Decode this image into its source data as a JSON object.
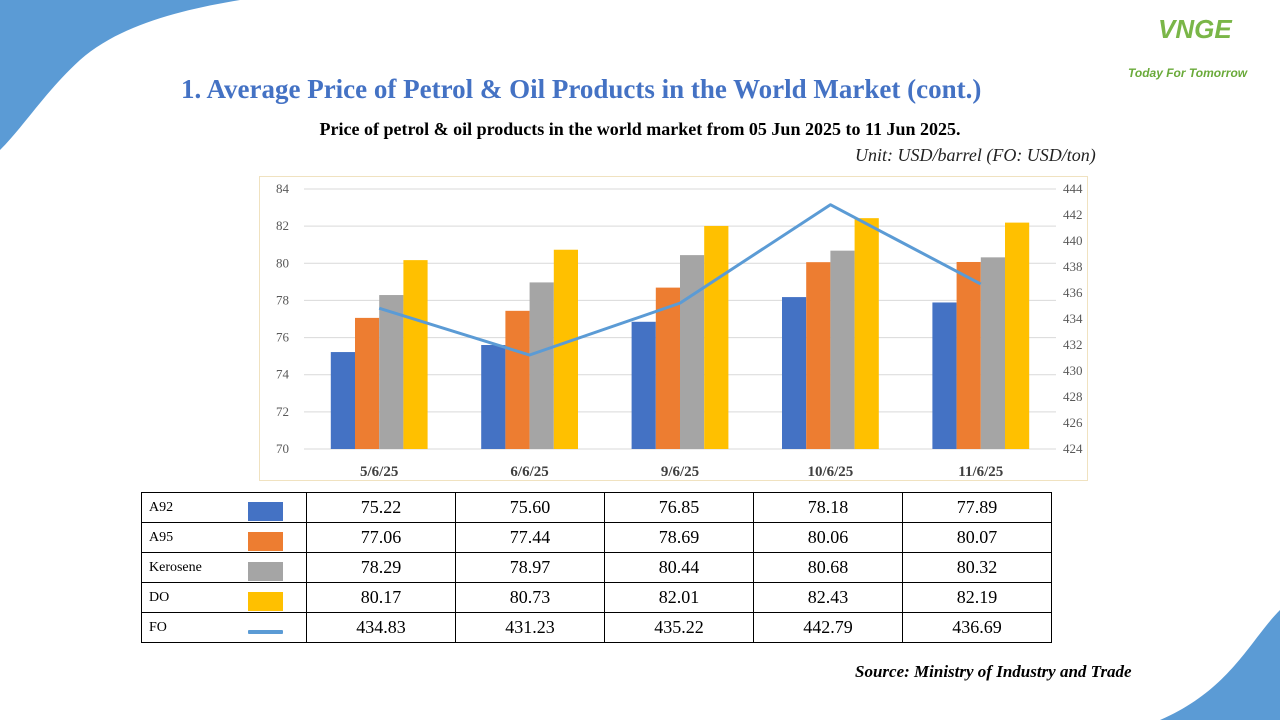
{
  "header": {
    "title": "1. Average Price of Petrol & Oil Products in the World Market (cont.)",
    "logo_text": "VNGE",
    "tagline": "Today For Tomorrow"
  },
  "chart": {
    "title": "Price of petrol & oil products in the world market from 05 Jun 2025 to 11 Jun 2025.",
    "unit": "Unit: USD/barrel (FO: USD/ton)"
  },
  "source": "Source: Ministry of Industry and Trade",
  "colors": {
    "A92": "#4472c4",
    "A95": "#ed7d31",
    "Kerosene": "#a5a5a5",
    "DO": "#ffc000",
    "FO": "#5b9bd5",
    "title": "#4472c4",
    "decor": "#5b9bd5"
  },
  "chart_data": {
    "type": "bar",
    "categories": [
      "5/6/25",
      "6/6/25",
      "9/6/25",
      "10/6/25",
      "11/6/25"
    ],
    "series": [
      {
        "name": "A92",
        "type": "bar",
        "axis": "left",
        "values": [
          75.22,
          75.6,
          76.85,
          78.18,
          77.89
        ],
        "labels": [
          "75.22",
          "75.60",
          "76.85",
          "78.18",
          "77.89"
        ]
      },
      {
        "name": "A95",
        "type": "bar",
        "axis": "left",
        "values": [
          77.06,
          77.44,
          78.69,
          80.06,
          80.07
        ],
        "labels": [
          "77.06",
          "77.44",
          "78.69",
          "80.06",
          "80.07"
        ]
      },
      {
        "name": "Kerosene",
        "type": "bar",
        "axis": "left",
        "values": [
          78.29,
          78.97,
          80.44,
          80.68,
          80.32
        ],
        "labels": [
          "78.29",
          "78.97",
          "80.44",
          "80.68",
          "80.32"
        ]
      },
      {
        "name": "DO",
        "type": "bar",
        "axis": "left",
        "values": [
          80.17,
          80.73,
          82.01,
          82.43,
          82.19
        ],
        "labels": [
          "80.17",
          "80.73",
          "82.01",
          "82.43",
          "82.19"
        ]
      },
      {
        "name": "FO",
        "type": "line",
        "axis": "right",
        "values": [
          434.83,
          431.23,
          435.22,
          442.79,
          436.69
        ],
        "labels": [
          "434.83",
          "431.23",
          "435.22",
          "442.79",
          "436.69"
        ]
      }
    ],
    "ylim": [
      70,
      84
    ],
    "y_ticks": [
      "70",
      "72",
      "74",
      "76",
      "78",
      "80",
      "82",
      "84"
    ],
    "y2lim": [
      424,
      444
    ],
    "y2_ticks": [
      "424",
      "426",
      "428",
      "430",
      "432",
      "434",
      "436",
      "438",
      "440",
      "442",
      "444"
    ],
    "grid": true,
    "legend": "data-table-below"
  }
}
